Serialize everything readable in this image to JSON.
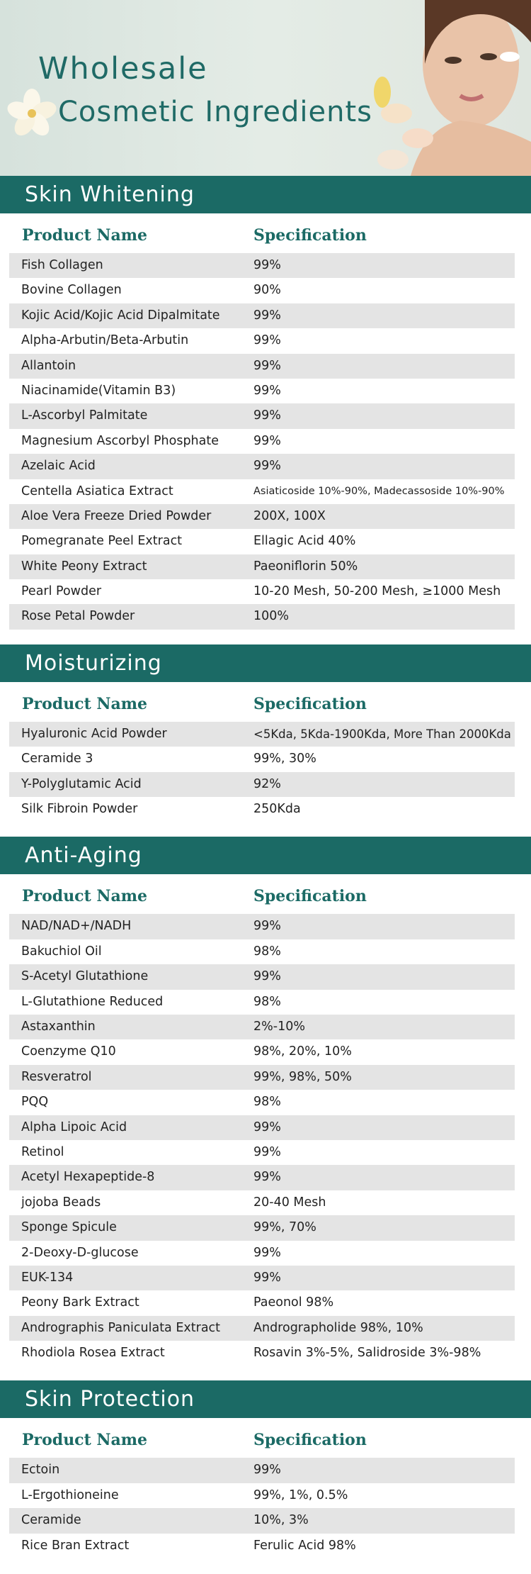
{
  "header": {
    "title_line1": "Wholesale",
    "title_line2": "Cosmetic Ingredients"
  },
  "sections": [
    {
      "title": "Skin Whitening",
      "columns": [
        "Product Name",
        "Specification"
      ],
      "rows": [
        [
          "Fish Collagen",
          "99%"
        ],
        [
          "Bovine Collagen",
          "90%"
        ],
        [
          "Kojic Acid/Kojic Acid Dipalmitate",
          "99%"
        ],
        [
          "Alpha-Arbutin/Beta-Arbutin",
          "99%"
        ],
        [
          "Allantoin",
          "99%"
        ],
        [
          "Niacinamide(Vitamin B3)",
          "99%"
        ],
        [
          "L-Ascorbyl Palmitate",
          "99%"
        ],
        [
          "Magnesium Ascorbyl Phosphate",
          "99%"
        ],
        [
          "Azelaic Acid",
          "99%"
        ],
        [
          "Centella Asiatica Extract",
          "Asiaticoside 10%-90%, Madecassoside 10%-90%"
        ],
        [
          "Aloe Vera Freeze Dried Powder",
          "200X, 100X"
        ],
        [
          "Pomegranate Peel Extract",
          "Ellagic Acid 40%"
        ],
        [
          "White Peony Extract",
          "Paeoniflorin 50%"
        ],
        [
          "Pearl Powder",
          "10-20 Mesh, 50-200 Mesh, ≥1000 Mesh"
        ],
        [
          "Rose Petal Powder",
          "100%"
        ]
      ]
    },
    {
      "title": "Moisturizing",
      "columns": [
        "Product Name",
        "Specification"
      ],
      "rows": [
        [
          "Hyaluronic Acid Powder",
          "<5Kda, 5Kda-1900Kda, More Than 2000Kda"
        ],
        [
          "Ceramide 3",
          "99%, 30%"
        ],
        [
          "Y-Polyglutamic Acid",
          "92%"
        ],
        [
          "Silk Fibroin Powder",
          "250Kda"
        ]
      ]
    },
    {
      "title": "Anti-Aging",
      "columns": [
        "Product Name",
        "Specification"
      ],
      "rows": [
        [
          "NAD/NAD+/NADH",
          "99%"
        ],
        [
          "Bakuchiol Oil",
          "98%"
        ],
        [
          "S-Acetyl Glutathione",
          "99%"
        ],
        [
          "L-Glutathione Reduced",
          "98%"
        ],
        [
          "Astaxanthin",
          "2%-10%"
        ],
        [
          "Coenzyme Q10",
          "98%, 20%, 10%"
        ],
        [
          "Resveratrol",
          "99%, 98%, 50%"
        ],
        [
          "PQQ",
          "98%"
        ],
        [
          "Alpha Lipoic Acid",
          "99%"
        ],
        [
          "Retinol",
          "99%"
        ],
        [
          "Acetyl Hexapeptide-8",
          "99%"
        ],
        [
          "jojoba Beads",
          "20-40 Mesh"
        ],
        [
          "Sponge Spicule",
          "99%, 70%"
        ],
        [
          "2-Deoxy-D-glucose",
          "99%"
        ],
        [
          "EUK-134",
          "99%"
        ],
        [
          "Peony Bark Extract",
          "Paeonol 98%"
        ],
        [
          "Andrographis Paniculata Extract",
          "Andrographolide 98%, 10%"
        ],
        [
          "Rhodiola Rosea Extract",
          "Rosavin 3%-5%,  Salidroside 3%-98%"
        ]
      ]
    },
    {
      "title": "Skin Protection",
      "columns": [
        "Product Name",
        "Specification"
      ],
      "rows": [
        [
          "Ectoin",
          "99%"
        ],
        [
          "L-Ergothioneine",
          "99%, 1%, 0.5%"
        ],
        [
          "Ceramide",
          "10%, 3%"
        ],
        [
          "Rice Bran Extract",
          "Ferulic Acid 98%"
        ]
      ]
    }
  ]
}
